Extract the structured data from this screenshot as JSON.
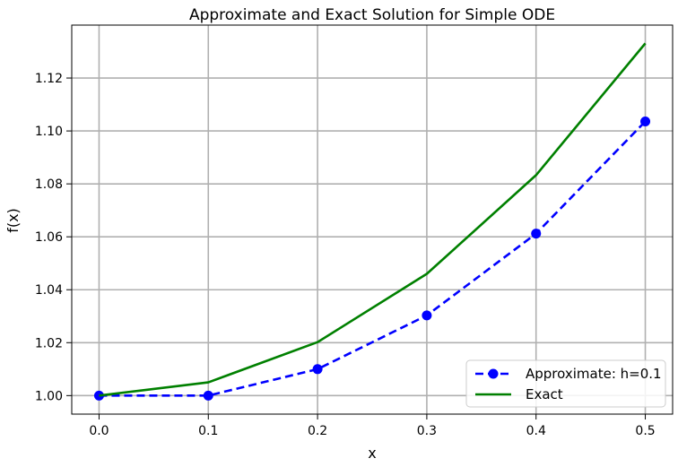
{
  "chart_data": {
    "type": "line",
    "title": "Approximate and Exact Solution for Simple ODE",
    "xlabel": "x",
    "ylabel": "f(x)",
    "xlim": [
      -0.025,
      0.525
    ],
    "ylim": [
      0.993,
      1.14
    ],
    "xticks": [
      0.0,
      0.1,
      0.2,
      0.3,
      0.4,
      0.5
    ],
    "xtick_labels": [
      "0.0",
      "0.1",
      "0.2",
      "0.3",
      "0.4",
      "0.5"
    ],
    "yticks": [
      1.0,
      1.02,
      1.04,
      1.06,
      1.08,
      1.1,
      1.12
    ],
    "ytick_labels": [
      "1.00",
      "1.02",
      "1.04",
      "1.06",
      "1.08",
      "1.10",
      "1.12"
    ],
    "grid": true,
    "legend_position": "lower-right",
    "x": [
      0.0,
      0.1,
      0.2,
      0.3,
      0.4,
      0.5
    ],
    "series": [
      {
        "name": "Approximate: h=0.1",
        "values": [
          1.0,
          1.0,
          1.01,
          1.0303,
          1.0612,
          1.1036
        ],
        "color": "#0000ff",
        "style": "dashed",
        "marker": "circle"
      },
      {
        "name": "Exact",
        "values": [
          1.0,
          1.005,
          1.0202,
          1.046,
          1.0833,
          1.1331
        ],
        "color": "#008000",
        "style": "solid",
        "marker": "none"
      }
    ]
  }
}
